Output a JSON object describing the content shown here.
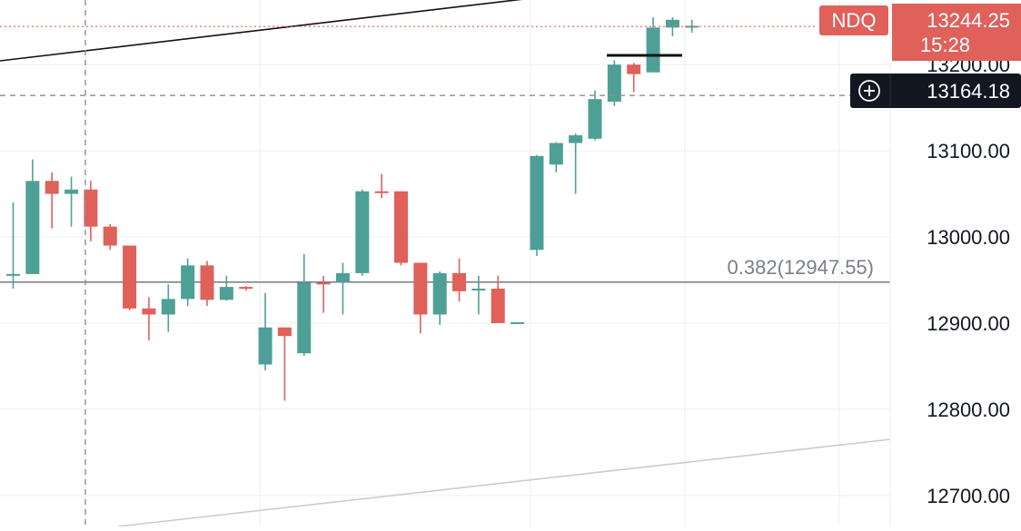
{
  "chart_data": {
    "type": "candlestick",
    "y_ticks": [
      "13200.00",
      "13100.00",
      "13000.00",
      "12900.00",
      "12800.00",
      "12700.00"
    ],
    "y_tick_values": [
      13200,
      13100,
      13000,
      12900,
      12800,
      12700
    ],
    "ylim": [
      12664,
      13275
    ],
    "grid": true,
    "symbol_label": "NDQ",
    "last_price": {
      "value": 13244.25,
      "text": "13244.25",
      "countdown": "15:28"
    },
    "crosshair": {
      "value": 13164.18,
      "text": "13164.18"
    },
    "fib_level": {
      "ratio": "0.382",
      "value": 12947.55,
      "label": "0.382(12947.55)"
    },
    "candles": [
      {
        "o": 12957,
        "h": 13040,
        "l": 12940,
        "c": 12957
      },
      {
        "o": 12957,
        "h": 13090,
        "l": 12957,
        "c": 13065
      },
      {
        "o": 13065,
        "h": 13075,
        "l": 13010,
        "c": 13050
      },
      {
        "o": 13050,
        "h": 13070,
        "l": 13012,
        "c": 13055
      },
      {
        "o": 13055,
        "h": 13065,
        "l": 12995,
        "c": 13012
      },
      {
        "o": 13012,
        "h": 13015,
        "l": 12985,
        "c": 12990
      },
      {
        "o": 12990,
        "h": 12990,
        "l": 12915,
        "c": 12917
      },
      {
        "o": 12917,
        "h": 12930,
        "l": 12880,
        "c": 12910
      },
      {
        "o": 12910,
        "h": 12945,
        "l": 12890,
        "c": 12928
      },
      {
        "o": 12928,
        "h": 12975,
        "l": 12920,
        "c": 12967
      },
      {
        "o": 12967,
        "h": 12972,
        "l": 12920,
        "c": 12927
      },
      {
        "o": 12927,
        "h": 12955,
        "l": 12926,
        "c": 12942
      },
      {
        "o": 12942,
        "h": 12943,
        "l": 12938,
        "c": 12940
      },
      {
        "o": 12852,
        "h": 12935,
        "l": 12845,
        "c": 12895
      },
      {
        "o": 12895,
        "h": 12895,
        "l": 12810,
        "c": 12885
      },
      {
        "o": 12865,
        "h": 12980,
        "l": 12862,
        "c": 12947
      },
      {
        "o": 12947,
        "h": 12955,
        "l": 12912,
        "c": 12945
      },
      {
        "o": 12947,
        "h": 12970,
        "l": 12910,
        "c": 12958
      },
      {
        "o": 12958,
        "h": 13055,
        "l": 12955,
        "c": 13053
      },
      {
        "o": 13053,
        "h": 13073,
        "l": 13045,
        "c": 13052
      },
      {
        "o": 13053,
        "h": 13053,
        "l": 12967,
        "c": 12970
      },
      {
        "o": 12970,
        "h": 12970,
        "l": 12888,
        "c": 12910
      },
      {
        "o": 12910,
        "h": 12960,
        "l": 12898,
        "c": 12958
      },
      {
        "o": 12958,
        "h": 12975,
        "l": 12925,
        "c": 12937
      },
      {
        "o": 12940,
        "h": 12955,
        "l": 12910,
        "c": 12940
      },
      {
        "o": 12940,
        "h": 12955,
        "l": 12900,
        "c": 12900
      },
      {
        "o": 12900,
        "h": 12901,
        "l": 12899,
        "c": 12901
      },
      {
        "o": 12985,
        "h": 13095,
        "l": 12978,
        "c": 13094
      },
      {
        "o": 13084,
        "h": 13110,
        "l": 13075,
        "c": 13109
      },
      {
        "o": 13109,
        "h": 13120,
        "l": 13050,
        "c": 13118
      },
      {
        "o": 13114,
        "h": 13170,
        "l": 13112,
        "c": 13160
      },
      {
        "o": 13157,
        "h": 13205,
        "l": 13152,
        "c": 13200
      },
      {
        "o": 13200,
        "h": 13202,
        "l": 13168,
        "c": 13189
      },
      {
        "o": 13191,
        "h": 13255,
        "l": 13191,
        "c": 13243
      },
      {
        "o": 13243,
        "h": 13255,
        "l": 13233,
        "c": 13252
      },
      {
        "o": 13244,
        "h": 13252,
        "l": 13237,
        "c": 13245
      }
    ]
  },
  "colors": {
    "up": "#4ea096",
    "down": "#e0605a",
    "grid": "#eeeff2",
    "axis_text": "#131722",
    "fib_text": "#7a7f8a",
    "fib_line": "#6b6b6b",
    "crosshair": "#8a8e96",
    "last_price_label": "#e0605a",
    "crosshair_label": "#131722",
    "trend_line": "#111111",
    "channel_line": "#c9cbd0",
    "background": "#ffffff"
  }
}
